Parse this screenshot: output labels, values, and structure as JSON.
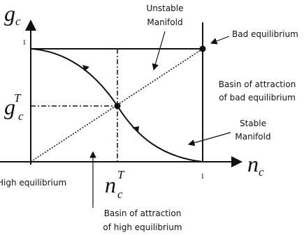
{
  "axes": {
    "y_label": {
      "main": "g",
      "sub": "c"
    },
    "x_label": {
      "main": "n",
      "sub": "c"
    },
    "y_tick": "1",
    "x_tick": "1"
  },
  "thresholds": {
    "g": {
      "main": "g",
      "sub": "c",
      "sup": "T"
    },
    "n": {
      "main": "n",
      "sub": "c",
      "sup": "T"
    }
  },
  "annotations": {
    "unstable": [
      "Unstable",
      "Manifold"
    ],
    "bad_equilibrium": "Bad equilibrium",
    "basin_bad": [
      "Basin of attraction",
      "of bad equilibrium"
    ],
    "stable": [
      "Stable",
      "Manifold"
    ],
    "high_equilibrium": "High equilibrium",
    "basin_high": [
      "Basin of attraction",
      "of high equilibrium"
    ]
  }
}
